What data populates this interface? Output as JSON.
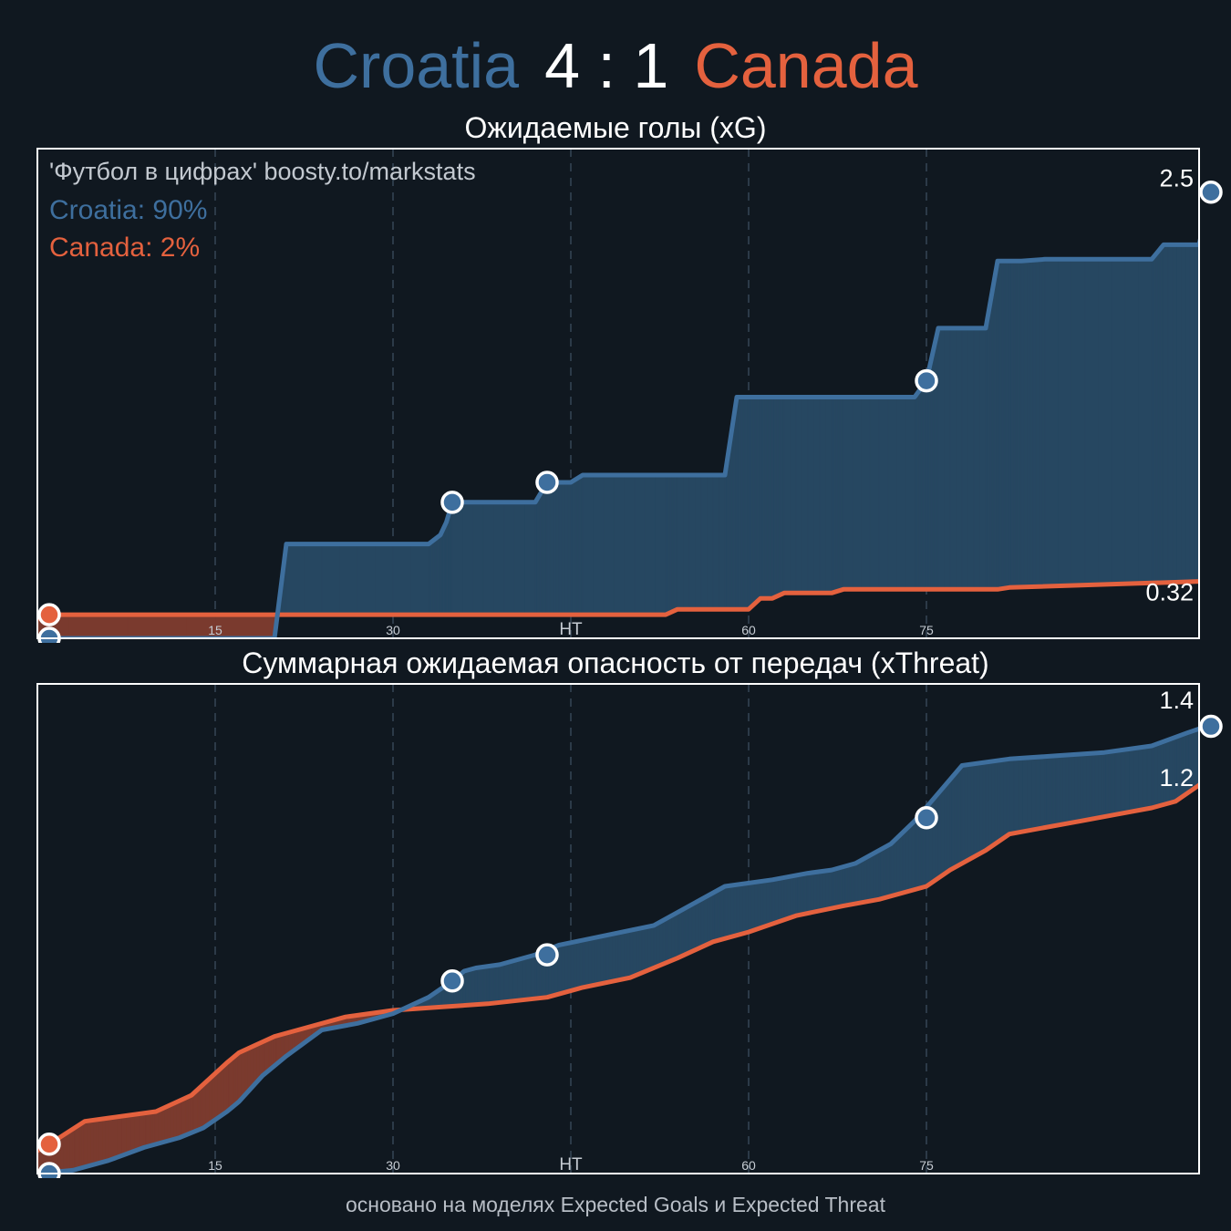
{
  "header": {
    "home_team": "Croatia",
    "score": "4 : 1",
    "away_team": "Canada"
  },
  "colors": {
    "home": "#3e6f9e",
    "home_fill": "#264761",
    "away": "#e4613e",
    "away_fill": "#7a3a2e",
    "background": "#101820",
    "frame": "#ffffff",
    "grid": "#2c3a48"
  },
  "footer": "основано на моделях Expected Goals и Expected Threat",
  "chart_data": [
    {
      "type": "area",
      "title": "Ожидаемые голы (xG)",
      "watermark": "'Футбол в цифрах' boosty.to/markstats",
      "win_probability": [
        {
          "team": "Croatia",
          "label": "Croatia: 90%"
        },
        {
          "team": "Canada",
          "label": "Canada: 2%"
        }
      ],
      "xlim": [
        0,
        98
      ],
      "ylim": [
        0,
        2.7
      ],
      "grid_x": [
        15,
        30,
        45,
        60,
        75
      ],
      "tick_labels": [
        {
          "x": 15,
          "label": "15"
        },
        {
          "x": 30,
          "label": "30"
        },
        {
          "x": 45,
          "label": "HT"
        },
        {
          "x": 60,
          "label": "60"
        },
        {
          "x": 75,
          "label": "75"
        }
      ],
      "end_labels": [
        "2.5",
        "0.32"
      ],
      "series": [
        {
          "name": "Croatia",
          "points": [
            [
              0,
              0
            ],
            [
              20,
              0
            ],
            [
              21,
              0.52
            ],
            [
              33,
              0.52
            ],
            [
              34,
              0.57
            ],
            [
              34.5,
              0.64
            ],
            [
              35,
              0.75
            ],
            [
              42,
              0.75
            ],
            [
              43,
              0.86
            ],
            [
              45,
              0.86
            ],
            [
              46,
              0.9
            ],
            [
              58,
              0.9
            ],
            [
              59,
              1.33
            ],
            [
              74,
              1.33
            ],
            [
              75,
              1.42
            ],
            [
              76,
              1.71
            ],
            [
              80,
              1.71
            ],
            [
              81,
              2.08
            ],
            [
              83,
              2.08
            ],
            [
              85,
              2.09
            ],
            [
              94,
              2.09
            ],
            [
              95,
              2.17
            ],
            [
              98,
              2.17
            ],
            [
              99,
              2.46
            ],
            [
              101,
              2.46
            ]
          ],
          "goals": [
            [
              1,
              0
            ],
            [
              35,
              0.75
            ],
            [
              43,
              0.86
            ],
            [
              75,
              1.42
            ],
            [
              99,
              2.46
            ]
          ]
        },
        {
          "name": "Canada",
          "points": [
            [
              -1,
              0
            ],
            [
              0.2,
              0.13
            ],
            [
              53,
              0.13
            ],
            [
              54,
              0.16
            ],
            [
              60,
              0.16
            ],
            [
              61,
              0.22
            ],
            [
              62,
              0.22
            ],
            [
              63,
              0.25
            ],
            [
              67,
              0.25
            ],
            [
              68,
              0.27
            ],
            [
              81,
              0.27
            ],
            [
              82,
              0.28
            ],
            [
              101,
              0.32
            ]
          ],
          "goals": [
            [
              1,
              0.13
            ]
          ]
        }
      ]
    },
    {
      "type": "area",
      "title": "Суммарная ожидаемая опасность от передач (xThreat)",
      "xlim": [
        0,
        98
      ],
      "ylim": [
        0,
        1.5
      ],
      "grid_x": [
        15,
        30,
        45,
        60,
        75
      ],
      "tick_labels": [
        {
          "x": 15,
          "label": "15"
        },
        {
          "x": 30,
          "label": "30"
        },
        {
          "x": 45,
          "label": "HT"
        },
        {
          "x": 60,
          "label": "60"
        },
        {
          "x": 75,
          "label": "75"
        }
      ],
      "end_labels": [
        "1.4",
        "1.2"
      ],
      "series": [
        {
          "name": "Croatia",
          "points": [
            [
              0,
              0
            ],
            [
              3,
              0.01
            ],
            [
              6,
              0.04
            ],
            [
              9,
              0.08
            ],
            [
              12,
              0.11
            ],
            [
              14,
              0.14
            ],
            [
              16,
              0.19
            ],
            [
              17,
              0.22
            ],
            [
              19,
              0.3
            ],
            [
              21,
              0.36
            ],
            [
              24,
              0.44
            ],
            [
              27,
              0.46
            ],
            [
              30,
              0.49
            ],
            [
              33,
              0.54
            ],
            [
              35,
              0.59
            ],
            [
              36,
              0.62
            ],
            [
              37,
              0.63
            ],
            [
              39,
              0.64
            ],
            [
              42,
              0.67
            ],
            [
              44,
              0.7
            ],
            [
              48,
              0.73
            ],
            [
              52,
              0.76
            ],
            [
              55,
              0.82
            ],
            [
              58,
              0.88
            ],
            [
              62,
              0.9
            ],
            [
              65,
              0.92
            ],
            [
              67,
              0.93
            ],
            [
              69,
              0.95
            ],
            [
              72,
              1.01
            ],
            [
              74,
              1.08
            ],
            [
              78,
              1.25
            ],
            [
              82,
              1.27
            ],
            [
              86,
              1.28
            ],
            [
              90,
              1.29
            ],
            [
              94,
              1.31
            ],
            [
              97,
              1.35
            ],
            [
              101,
              1.4
            ]
          ],
          "goals": [
            [
              1,
              0
            ],
            [
              35,
              0.59
            ],
            [
              43,
              0.67
            ],
            [
              75,
              1.09
            ],
            [
              99,
              1.37
            ]
          ]
        },
        {
          "name": "Canada",
          "points": [
            [
              -1,
              0.05
            ],
            [
              1,
              0.09
            ],
            [
              4,
              0.16
            ],
            [
              6,
              0.17
            ],
            [
              10,
              0.19
            ],
            [
              13,
              0.24
            ],
            [
              16,
              0.34
            ],
            [
              17,
              0.37
            ],
            [
              20,
              0.42
            ],
            [
              23,
              0.45
            ],
            [
              26,
              0.48
            ],
            [
              30,
              0.5
            ],
            [
              34,
              0.51
            ],
            [
              38,
              0.52
            ],
            [
              43,
              0.54
            ],
            [
              46,
              0.57
            ],
            [
              50,
              0.6
            ],
            [
              54,
              0.66
            ],
            [
              57,
              0.71
            ],
            [
              60,
              0.74
            ],
            [
              64,
              0.79
            ],
            [
              68,
              0.82
            ],
            [
              71,
              0.84
            ],
            [
              75,
              0.88
            ],
            [
              77,
              0.93
            ],
            [
              80,
              0.99
            ],
            [
              82,
              1.04
            ],
            [
              85,
              1.06
            ],
            [
              88,
              1.08
            ],
            [
              91,
              1.1
            ],
            [
              94,
              1.12
            ],
            [
              96,
              1.14
            ],
            [
              98,
              1.19
            ],
            [
              101,
              1.26
            ]
          ],
          "goals": [
            [
              1,
              0.09
            ]
          ]
        }
      ]
    }
  ]
}
